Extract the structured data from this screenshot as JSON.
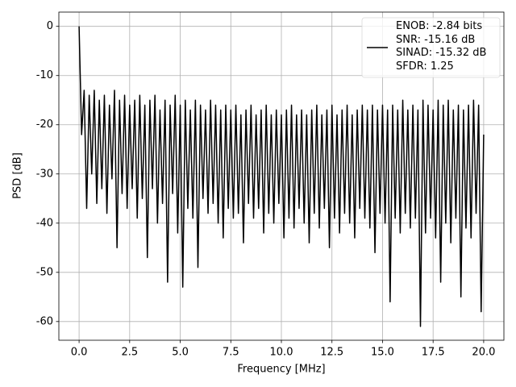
{
  "chart_data": {
    "type": "line",
    "xlabel": "Frequency [MHz]",
    "ylabel": "PSD [dB]",
    "x": [
      0,
      0.125,
      0.25,
      0.375,
      0.5,
      0.625,
      0.75,
      0.875,
      1,
      1.125,
      1.25,
      1.375,
      1.5,
      1.625,
      1.75,
      1.875,
      2,
      2.125,
      2.25,
      2.375,
      2.5,
      2.625,
      2.75,
      2.875,
      3,
      3.125,
      3.25,
      3.375,
      3.5,
      3.625,
      3.75,
      3.875,
      4,
      4.125,
      4.25,
      4.375,
      4.5,
      4.625,
      4.75,
      4.875,
      5,
      5.125,
      5.25,
      5.375,
      5.5,
      5.625,
      5.75,
      5.875,
      6,
      6.125,
      6.25,
      6.375,
      6.5,
      6.625,
      6.75,
      6.875,
      7,
      7.125,
      7.25,
      7.375,
      7.5,
      7.625,
      7.75,
      7.875,
      8,
      8.125,
      8.25,
      8.375,
      8.5,
      8.625,
      8.75,
      8.875,
      9,
      9.125,
      9.25,
      9.375,
      9.5,
      9.625,
      9.75,
      9.875,
      10,
      10.125,
      10.25,
      10.375,
      10.5,
      10.625,
      10.75,
      10.875,
      11,
      11.125,
      11.25,
      11.375,
      11.5,
      11.625,
      11.75,
      11.875,
      12,
      12.125,
      12.25,
      12.375,
      12.5,
      12.625,
      12.75,
      12.875,
      13,
      13.125,
      13.25,
      13.375,
      13.5,
      13.625,
      13.75,
      13.875,
      14,
      14.125,
      14.25,
      14.375,
      14.5,
      14.625,
      14.75,
      14.875,
      15,
      15.125,
      15.25,
      15.375,
      15.5,
      15.625,
      15.75,
      15.875,
      16,
      16.125,
      16.25,
      16.375,
      16.5,
      16.625,
      16.75,
      16.875,
      17,
      17.125,
      17.25,
      17.375,
      17.5,
      17.625,
      17.75,
      17.875,
      18,
      18.125,
      18.25,
      18.375,
      18.5,
      18.625,
      18.75,
      18.875,
      19,
      19.125,
      19.25,
      19.375,
      19.5,
      19.625,
      19.75,
      19.875,
      20
    ],
    "series": [
      {
        "name": "ENOB: -2.84 bits\nSNR: -15.16 dB\nSINAD: -15.32 dB\nSFDR: 1.25",
        "color": "#000000",
        "values": [
          0,
          -22,
          -13,
          -37,
          -14,
          -30,
          -13,
          -36,
          -15,
          -33,
          -14,
          -38,
          -16,
          -31,
          -13,
          -45,
          -15,
          -34,
          -14,
          -37,
          -16,
          -33,
          -15,
          -39,
          -14,
          -35,
          -16,
          -47,
          -15,
          -33,
          -14,
          -40,
          -17,
          -36,
          -15,
          -52,
          -16,
          -34,
          -14,
          -42,
          -16,
          -53,
          -15,
          -37,
          -17,
          -39,
          -15,
          -49,
          -16,
          -35,
          -17,
          -38,
          -15,
          -36,
          -16,
          -40,
          -17,
          -43,
          -16,
          -37,
          -17,
          -39,
          -16,
          -38,
          -18,
          -44,
          -17,
          -36,
          -16,
          -39,
          -18,
          -37,
          -17,
          -42,
          -16,
          -38,
          -18,
          -40,
          -17,
          -36,
          -18,
          -43,
          -17,
          -39,
          -16,
          -41,
          -18,
          -37,
          -17,
          -40,
          -18,
          -44,
          -17,
          -38,
          -16,
          -41,
          -18,
          -37,
          -17,
          -45,
          -16,
          -39,
          -18,
          -42,
          -17,
          -38,
          -16,
          -40,
          -18,
          -43,
          -17,
          -37,
          -16,
          -39,
          -17,
          -41,
          -16,
          -46,
          -17,
          -38,
          -16,
          -40,
          -17,
          -56,
          -16,
          -39,
          -17,
          -42,
          -15,
          -38,
          -17,
          -41,
          -16,
          -39,
          -17,
          -61,
          -15,
          -42,
          -16,
          -39,
          -17,
          -43,
          -15,
          -52,
          -16,
          -40,
          -15,
          -44,
          -17,
          -39,
          -16,
          -55,
          -17,
          -41,
          -16,
          -43,
          -15,
          -38,
          -16,
          -58,
          -22
        ]
      }
    ],
    "xlim": [
      -1,
      21
    ],
    "ylim": [
      -63.8,
      2.9
    ],
    "xticks": [
      {
        "value": 0,
        "label": "0.0"
      },
      {
        "value": 2.5,
        "label": "2.5"
      },
      {
        "value": 5,
        "label": "5.0"
      },
      {
        "value": 7.5,
        "label": "7.5"
      },
      {
        "value": 10,
        "label": "10.0"
      },
      {
        "value": 12.5,
        "label": "12.5"
      },
      {
        "value": 15,
        "label": "15.0"
      },
      {
        "value": 17.5,
        "label": "17.5"
      },
      {
        "value": 20,
        "label": "20.0"
      }
    ],
    "yticks": [
      0,
      -10,
      -20,
      -30,
      -40,
      -50,
      -60
    ],
    "grid": true,
    "legend": "upper-right"
  }
}
